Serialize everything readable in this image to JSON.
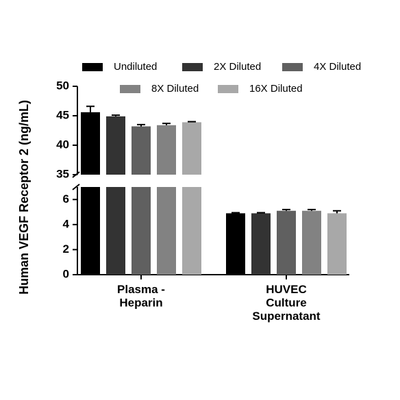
{
  "chart_data": {
    "type": "bar",
    "y_label": "Human VEGF Receptor 2 (ng/mL)",
    "categories": [
      "Plasma -\nHeparin",
      "HUVEC\nCulture\nSupernatant"
    ],
    "series": [
      {
        "name": "Undiluted",
        "color": "#000000",
        "values": [
          45.6,
          4.9
        ],
        "errors": [
          1.0,
          0.05
        ]
      },
      {
        "name": "2X Diluted",
        "color": "#333333",
        "values": [
          44.9,
          4.9
        ],
        "errors": [
          0.2,
          0.05
        ]
      },
      {
        "name": "4X Diluted",
        "color": "#606060",
        "values": [
          43.2,
          5.1
        ],
        "errors": [
          0.3,
          0.1
        ]
      },
      {
        "name": "8X Diluted",
        "color": "#828282",
        "values": [
          43.4,
          5.1
        ],
        "errors": [
          0.3,
          0.1
        ]
      },
      {
        "name": "16X Diluted",
        "color": "#a8a8a8",
        "values": [
          43.9,
          4.9
        ],
        "errors": [
          0.1,
          0.2
        ]
      }
    ],
    "y_segments": [
      {
        "ylim": [
          0,
          7
        ],
        "yticks": [
          0,
          2,
          4,
          6
        ]
      },
      {
        "ylim": [
          35,
          50
        ],
        "yticks": [
          35,
          40,
          45,
          50
        ]
      }
    ]
  }
}
